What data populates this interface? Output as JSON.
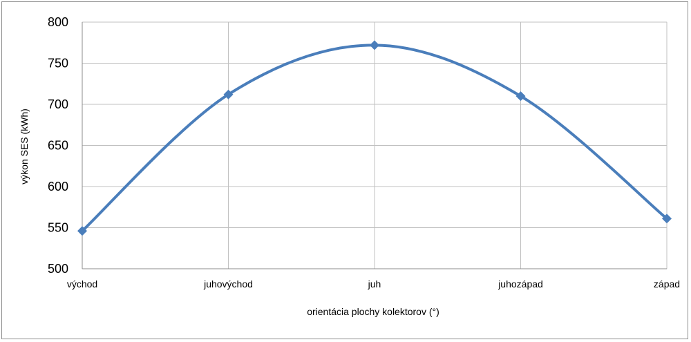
{
  "chart_data": {
    "type": "line",
    "categories": [
      "východ",
      "juhovýchod",
      "juh",
      "juhozápad",
      "západ"
    ],
    "series": [
      {
        "values": [
          546,
          712,
          772,
          710,
          561
        ],
        "color": "#4a7ebb",
        "marker": "diamond",
        "smooth": true
      }
    ],
    "xlabel": "orientácia plochy kolektorov (°)",
    "ylabel": "výkon SES (kWh)",
    "ylim": [
      500,
      800
    ],
    "yticks": [
      500,
      550,
      600,
      650,
      700,
      750,
      800
    ],
    "grid": true,
    "legend": "none"
  }
}
